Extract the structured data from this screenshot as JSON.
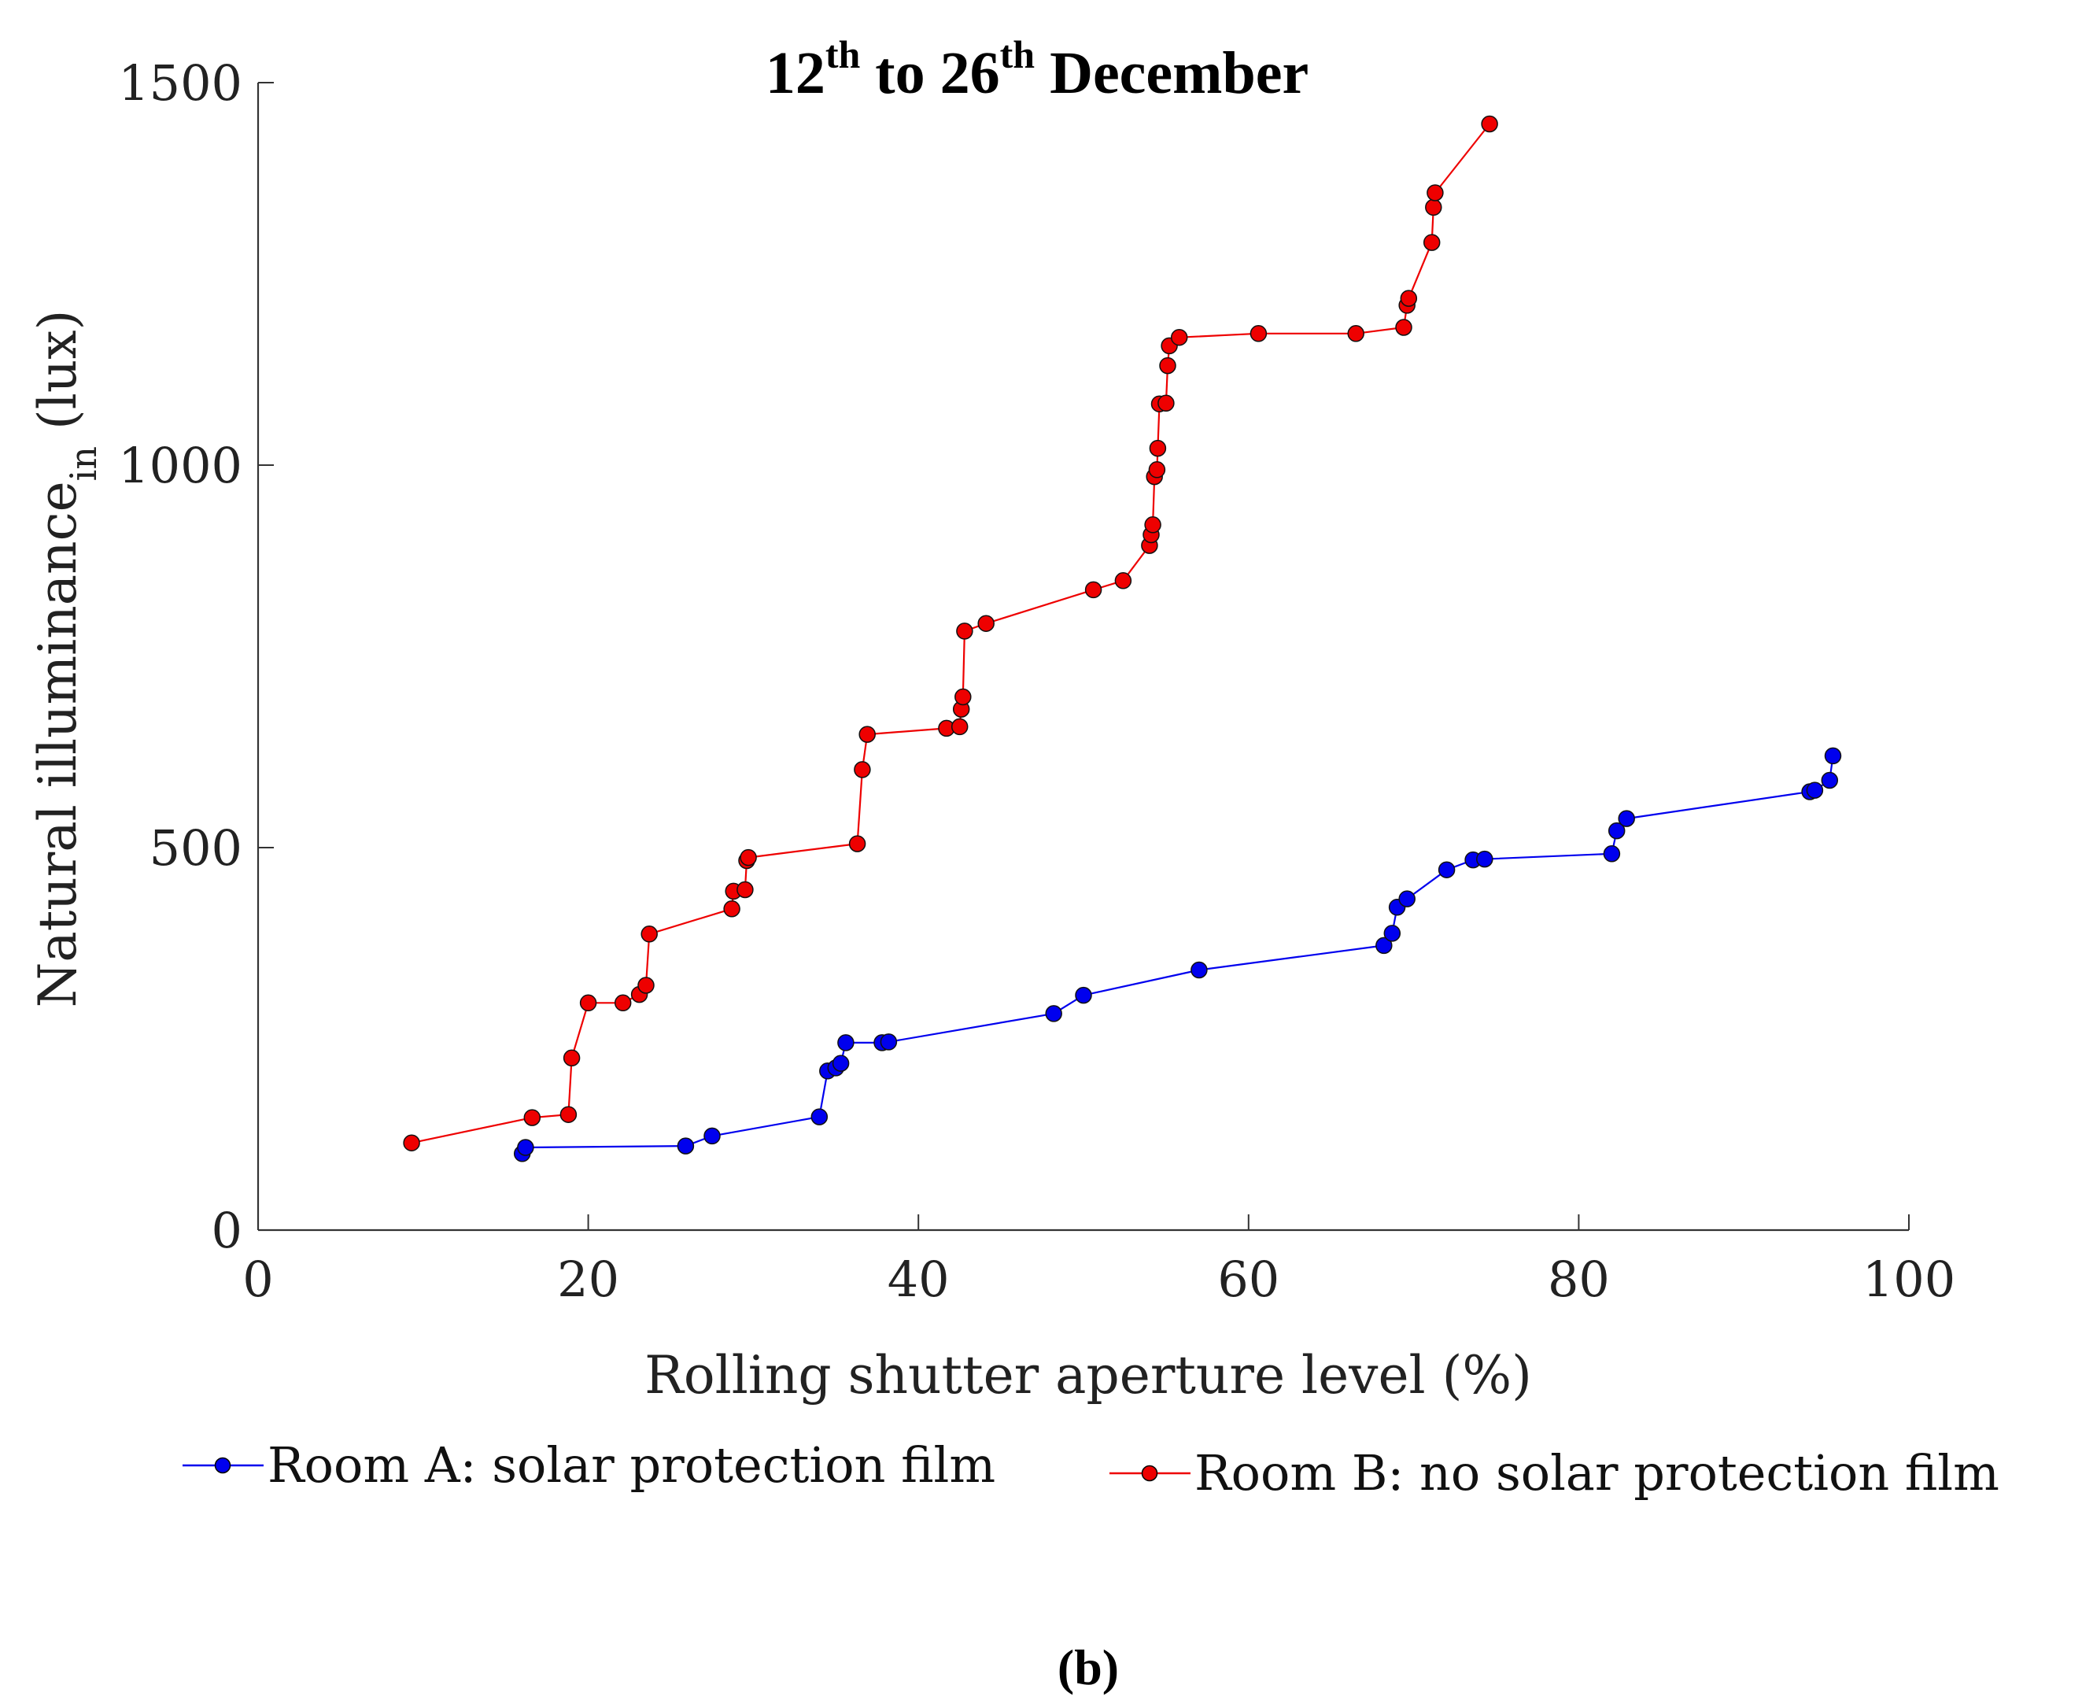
{
  "chart_data": {
    "type": "line",
    "title": {
      "prefix": "12",
      "sup1": "th",
      "middle": " to 26",
      "sup2": "th",
      "suffix": " December"
    },
    "xlabel": "Rolling shutter aperture level (%)",
    "ylabel": {
      "main": "Natural illuminance",
      "sub": "in",
      "unit": " (lux)"
    },
    "xlim": [
      0,
      100
    ],
    "ylim": [
      0,
      1500
    ],
    "xticks": [
      0,
      20,
      40,
      60,
      80,
      100
    ],
    "yticks": [
      0,
      500,
      1000,
      1500
    ],
    "grid": false,
    "legend_position": "bottom",
    "caption": "(b)",
    "series": [
      {
        "name": "Room A: solar protection film",
        "color": "#0000ee",
        "points": [
          [
            16.0,
            100
          ],
          [
            16.2,
            108
          ],
          [
            25.9,
            110
          ],
          [
            27.5,
            123
          ],
          [
            34.0,
            148
          ],
          [
            34.5,
            208
          ],
          [
            35.0,
            212
          ],
          [
            35.3,
            218
          ],
          [
            35.6,
            245
          ],
          [
            37.8,
            245
          ],
          [
            38.2,
            246
          ],
          [
            48.2,
            283
          ],
          [
            50.0,
            307
          ],
          [
            57.0,
            340
          ],
          [
            68.2,
            372
          ],
          [
            68.7,
            388
          ],
          [
            69.0,
            422
          ],
          [
            69.6,
            433
          ],
          [
            72.0,
            471
          ],
          [
            73.6,
            484
          ],
          [
            74.3,
            485
          ],
          [
            82.0,
            492
          ],
          [
            82.3,
            522
          ],
          [
            82.9,
            538
          ],
          [
            94.0,
            573
          ],
          [
            94.3,
            575
          ],
          [
            95.2,
            588
          ],
          [
            95.4,
            620
          ]
        ]
      },
      {
        "name": "Room B: no solar protection film",
        "color": "#ee0000",
        "points": [
          [
            9.3,
            114
          ],
          [
            16.6,
            147
          ],
          [
            18.8,
            151
          ],
          [
            19.0,
            225
          ],
          [
            20.0,
            297
          ],
          [
            22.1,
            297
          ],
          [
            23.1,
            308
          ],
          [
            23.5,
            320
          ],
          [
            23.7,
            387
          ],
          [
            28.7,
            420
          ],
          [
            28.8,
            443
          ],
          [
            29.5,
            445
          ],
          [
            29.6,
            483
          ],
          [
            29.7,
            487
          ],
          [
            36.3,
            505
          ],
          [
            36.6,
            602
          ],
          [
            36.9,
            648
          ],
          [
            41.7,
            656
          ],
          [
            42.5,
            658
          ],
          [
            42.6,
            681
          ],
          [
            42.7,
            697
          ],
          [
            42.8,
            783
          ],
          [
            44.1,
            793
          ],
          [
            50.6,
            837
          ],
          [
            52.4,
            849
          ],
          [
            54.0,
            895
          ],
          [
            54.1,
            909
          ],
          [
            54.2,
            922
          ],
          [
            54.3,
            985
          ],
          [
            54.45,
            994
          ],
          [
            54.5,
            1022
          ],
          [
            54.6,
            1080
          ],
          [
            55.0,
            1081
          ],
          [
            55.1,
            1130
          ],
          [
            55.2,
            1156
          ],
          [
            55.8,
            1167
          ],
          [
            60.6,
            1172
          ],
          [
            66.5,
            1172
          ],
          [
            69.4,
            1180
          ],
          [
            69.6,
            1209
          ],
          [
            69.7,
            1218
          ],
          [
            71.1,
            1291
          ],
          [
            71.2,
            1337
          ],
          [
            71.3,
            1356
          ],
          [
            74.6,
            1446
          ]
        ]
      }
    ]
  }
}
